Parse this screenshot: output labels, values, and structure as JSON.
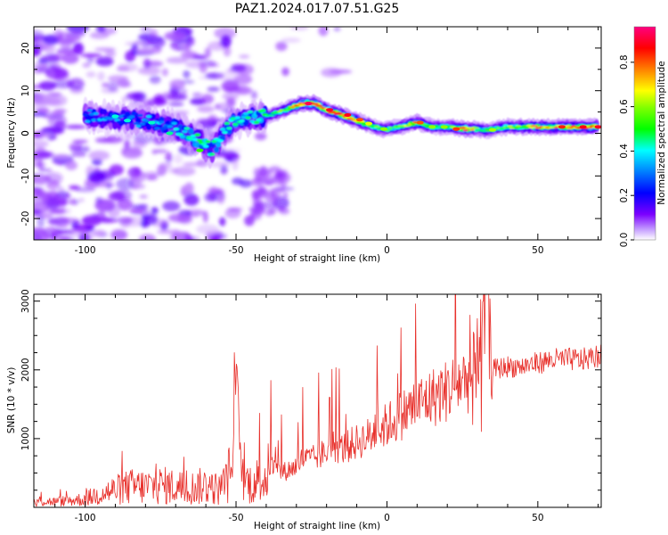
{
  "title": "PAZ1.2024.017.07.51.G25",
  "chart_data": [
    {
      "type": "heatmap",
      "xlabel": "Height of straight line (km)",
      "ylabel": "Frequency (Hz)",
      "xlim": [
        -117,
        71
      ],
      "ylim": [
        -25,
        25
      ],
      "xticks": [
        "-100",
        "-50",
        "0",
        "50"
      ],
      "xtick_values": [
        -100,
        -50,
        0,
        50
      ],
      "yticks": [
        "20",
        "10",
        "0",
        "-10",
        "-20"
      ],
      "ytick_values": [
        20,
        10,
        0,
        -10,
        -20
      ],
      "colorbar": {
        "label": "Normalized spectral amplitude",
        "ticks": [
          "0.0",
          "0.2",
          "0.4",
          "0.6",
          "0.8"
        ],
        "tick_values": [
          0.0,
          0.2,
          0.4,
          0.6,
          0.8
        ],
        "range": [
          0,
          0.96
        ],
        "colormap": [
          "#ffffff",
          "#7b00ff",
          "#0000ff",
          "#00ffff",
          "#00ff00",
          "#ffff00",
          "#ff0000",
          "#ff0080"
        ]
      },
      "ridge": {
        "x": [
          -100,
          -90,
          -80,
          -70,
          -62,
          -58,
          -52,
          -46,
          -40,
          -34,
          -28,
          -24,
          -20,
          -14,
          -10,
          -6,
          -2,
          0,
          4,
          10,
          15,
          20,
          26,
          30,
          33,
          40,
          50,
          60,
          70
        ],
        "frequency": [
          4,
          3.5,
          3,
          1.5,
          -2,
          -4,
          2,
          3.5,
          4,
          5.5,
          7,
          7,
          5.5,
          4,
          3,
          2,
          1,
          1,
          1.5,
          2.5,
          1.5,
          1.5,
          1,
          1,
          0.7,
          1.5,
          1.5,
          1.5,
          1.5
        ],
        "amplitude": [
          0.35,
          0.35,
          0.35,
          0.4,
          0.5,
          0.45,
          0.45,
          0.45,
          0.5,
          0.6,
          0.85,
          0.85,
          0.8,
          0.8,
          0.75,
          0.6,
          0.55,
          0.55,
          0.55,
          0.75,
          0.55,
          0.55,
          0.9,
          0.6,
          0.55,
          0.6,
          0.7,
          0.75,
          0.8
        ]
      }
    },
    {
      "type": "line",
      "xlabel": "Height of straight line (km)",
      "ylabel": "SNR (10 * v/v)",
      "xlim": [
        -117,
        71
      ],
      "ylim": [
        0,
        3100
      ],
      "xticks": [
        "-100",
        "-50",
        "0",
        "50"
      ],
      "xtick_values": [
        -100,
        -50,
        0,
        50
      ],
      "yticks": [
        "3000",
        "2000",
        "1000"
      ],
      "ytick_values": [
        3000,
        2000,
        1000
      ],
      "color": "#e8312c",
      "series": [
        {
          "x": [
            -117,
            -110,
            -100,
            -95,
            -90,
            -85,
            -80,
            -75,
            -70,
            -65,
            -60,
            -55,
            -51,
            -50,
            -48,
            -45,
            -40,
            -38,
            -35,
            -30,
            -28,
            -25,
            -20,
            -18,
            -15,
            -10,
            -5,
            0,
            5,
            10,
            15,
            20,
            25,
            28,
            30,
            32,
            33,
            35,
            40,
            45,
            50,
            55,
            60,
            65,
            70
          ],
          "y": [
            100,
            80,
            120,
            200,
            250,
            300,
            300,
            320,
            300,
            280,
            320,
            250,
            600,
            1950,
            400,
            350,
            450,
            600,
            500,
            600,
            700,
            700,
            800,
            900,
            850,
            950,
            1050,
            1200,
            1350,
            1500,
            1600,
            1700,
            1850,
            1900,
            2200,
            2600,
            3000,
            2000,
            2050,
            2050,
            2100,
            2150,
            2150,
            2150,
            2200
          ]
        }
      ]
    }
  ]
}
